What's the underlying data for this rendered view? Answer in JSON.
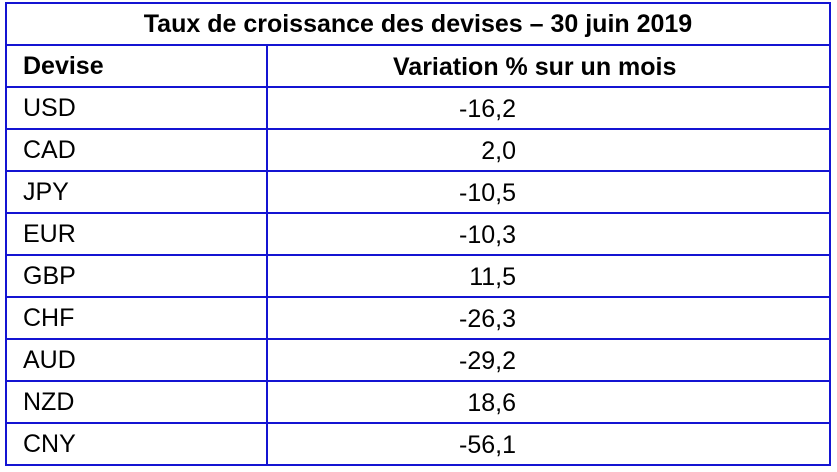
{
  "title": "Taux de croissance des devises – 30 juin 2019",
  "headers": {
    "currency": "Devise",
    "change": "Variation % sur un mois"
  },
  "rows": [
    {
      "currency": "USD",
      "change": "-16,2"
    },
    {
      "currency": "CAD",
      "change": "2,0"
    },
    {
      "currency": "JPY",
      "change": "-10,5"
    },
    {
      "currency": "EUR",
      "change": "-10,3"
    },
    {
      "currency": "GBP",
      "change": "11,5"
    },
    {
      "currency": "CHF",
      "change": "-26,3"
    },
    {
      "currency": "AUD",
      "change": "-29,2"
    },
    {
      "currency": "NZD",
      "change": "18,6"
    },
    {
      "currency": "CNY",
      "change": "-56,1"
    }
  ],
  "colors": {
    "border": "#1414d2"
  }
}
